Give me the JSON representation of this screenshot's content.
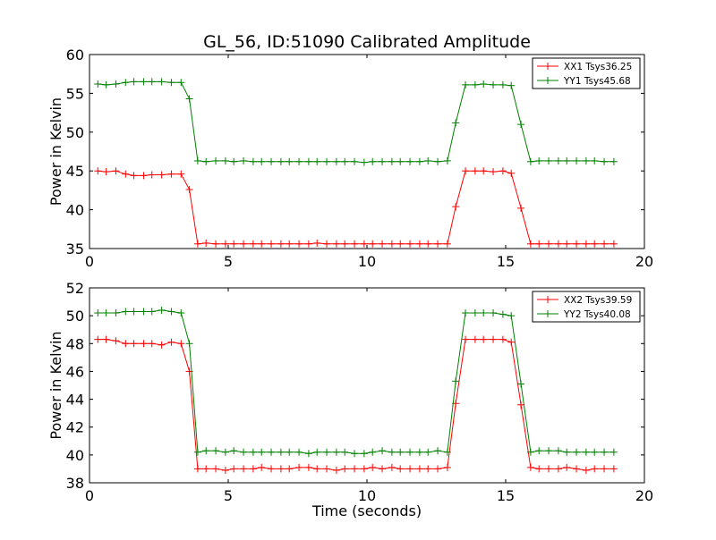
{
  "figure": {
    "title": "GL_56, ID:51090 Calibrated Amplitude"
  },
  "chart_data": [
    {
      "type": "line",
      "title": "GL_56, ID:51090 Calibrated Amplitude",
      "xlabel": "",
      "ylabel": "Power in Kelvin",
      "xlim": [
        0,
        20
      ],
      "ylim": [
        35,
        60
      ],
      "xticks": [
        "0",
        "5",
        "10",
        "15",
        "20"
      ],
      "yticks": [
        "35",
        "40",
        "45",
        "50",
        "55",
        "60"
      ],
      "grid": false,
      "legend_position": "top-right",
      "x": [
        0.3,
        0.6,
        0.95,
        1.3,
        1.6,
        1.95,
        2.25,
        2.6,
        2.95,
        3.3,
        3.6,
        3.9,
        4.2,
        4.55,
        4.9,
        5.2,
        5.55,
        5.9,
        6.2,
        6.55,
        6.9,
        7.2,
        7.55,
        7.9,
        8.2,
        8.55,
        8.9,
        9.2,
        9.55,
        9.9,
        10.2,
        10.55,
        10.9,
        11.2,
        11.55,
        11.9,
        12.2,
        12.55,
        12.9,
        13.2,
        13.55,
        13.9,
        14.2,
        14.55,
        14.9,
        15.2,
        15.55,
        15.9,
        16.2,
        16.55,
        16.9,
        17.2,
        17.55,
        17.9,
        18.2,
        18.55,
        18.9
      ],
      "series": [
        {
          "name": "XX1 Tsys36.25",
          "color": "#ff0000",
          "values": [
            45.0,
            44.9,
            45.0,
            44.6,
            44.4,
            44.4,
            44.5,
            44.5,
            44.6,
            44.6,
            42.6,
            35.6,
            35.7,
            35.6,
            35.6,
            35.6,
            35.6,
            35.6,
            35.6,
            35.6,
            35.6,
            35.6,
            35.6,
            35.6,
            35.7,
            35.6,
            35.6,
            35.6,
            35.6,
            35.6,
            35.6,
            35.6,
            35.6,
            35.6,
            35.6,
            35.6,
            35.6,
            35.6,
            35.6,
            40.4,
            45.0,
            45.0,
            45.0,
            44.9,
            45.0,
            44.7,
            40.2,
            35.6,
            35.6,
            35.6,
            35.6,
            35.6,
            35.6,
            35.6,
            35.6,
            35.6,
            35.6
          ]
        },
        {
          "name": "YY1 Tsys45.68",
          "color": "#008000",
          "values": [
            56.2,
            56.1,
            56.2,
            56.4,
            56.5,
            56.5,
            56.5,
            56.5,
            56.4,
            56.4,
            54.3,
            46.3,
            46.2,
            46.3,
            46.3,
            46.2,
            46.3,
            46.2,
            46.2,
            46.2,
            46.2,
            46.2,
            46.2,
            46.2,
            46.2,
            46.2,
            46.2,
            46.2,
            46.2,
            46.1,
            46.2,
            46.2,
            46.2,
            46.2,
            46.2,
            46.2,
            46.3,
            46.2,
            46.3,
            51.2,
            56.1,
            56.1,
            56.2,
            56.1,
            56.1,
            56.0,
            51.0,
            46.2,
            46.3,
            46.3,
            46.3,
            46.3,
            46.3,
            46.3,
            46.3,
            46.2,
            46.2
          ]
        }
      ]
    },
    {
      "type": "line",
      "title": "",
      "xlabel": "Time (seconds)",
      "ylabel": "Power in Kelvin",
      "xlim": [
        0,
        20
      ],
      "ylim": [
        38,
        52
      ],
      "xticks": [
        "0",
        "5",
        "10",
        "15",
        "20"
      ],
      "yticks": [
        "38",
        "40",
        "42",
        "44",
        "46",
        "48",
        "50",
        "52"
      ],
      "grid": false,
      "legend_position": "top-right",
      "x": [
        0.3,
        0.6,
        0.95,
        1.3,
        1.6,
        1.95,
        2.25,
        2.6,
        2.95,
        3.3,
        3.6,
        3.9,
        4.2,
        4.55,
        4.9,
        5.2,
        5.55,
        5.9,
        6.2,
        6.55,
        6.9,
        7.2,
        7.55,
        7.9,
        8.2,
        8.55,
        8.9,
        9.2,
        9.55,
        9.9,
        10.2,
        10.55,
        10.9,
        11.2,
        11.55,
        11.9,
        12.2,
        12.55,
        12.9,
        13.2,
        13.55,
        13.9,
        14.2,
        14.55,
        14.9,
        15.2,
        15.55,
        15.9,
        16.2,
        16.55,
        16.9,
        17.2,
        17.55,
        17.9,
        18.2,
        18.55,
        18.9
      ],
      "series": [
        {
          "name": "XX2 Tsys39.59",
          "color": "#ff0000",
          "values": [
            48.3,
            48.3,
            48.2,
            48.0,
            48.0,
            48.0,
            48.0,
            47.9,
            48.1,
            48.0,
            46.0,
            39.0,
            39.0,
            39.0,
            38.9,
            39.0,
            39.0,
            39.0,
            39.1,
            39.0,
            39.0,
            39.0,
            39.1,
            39.1,
            39.0,
            39.0,
            38.9,
            39.0,
            39.0,
            39.0,
            39.1,
            39.0,
            39.1,
            39.0,
            39.0,
            39.0,
            39.0,
            39.0,
            39.1,
            43.7,
            48.3,
            48.3,
            48.3,
            48.3,
            48.3,
            48.1,
            43.6,
            39.1,
            39.0,
            39.0,
            39.0,
            39.1,
            39.0,
            38.9,
            39.0,
            39.0,
            39.0
          ]
        },
        {
          "name": "YY2 Tsys40.08",
          "color": "#008000",
          "values": [
            50.2,
            50.2,
            50.2,
            50.3,
            50.3,
            50.3,
            50.3,
            50.4,
            50.3,
            50.2,
            48.0,
            40.2,
            40.3,
            40.3,
            40.2,
            40.3,
            40.2,
            40.2,
            40.2,
            40.2,
            40.2,
            40.2,
            40.2,
            40.1,
            40.2,
            40.2,
            40.2,
            40.2,
            40.1,
            40.1,
            40.2,
            40.3,
            40.2,
            40.2,
            40.2,
            40.2,
            40.2,
            40.3,
            40.2,
            45.3,
            50.2,
            50.2,
            50.2,
            50.2,
            50.1,
            50.0,
            45.1,
            40.2,
            40.3,
            40.3,
            40.3,
            40.2,
            40.2,
            40.2,
            40.2,
            40.2,
            40.2
          ]
        }
      ]
    }
  ]
}
